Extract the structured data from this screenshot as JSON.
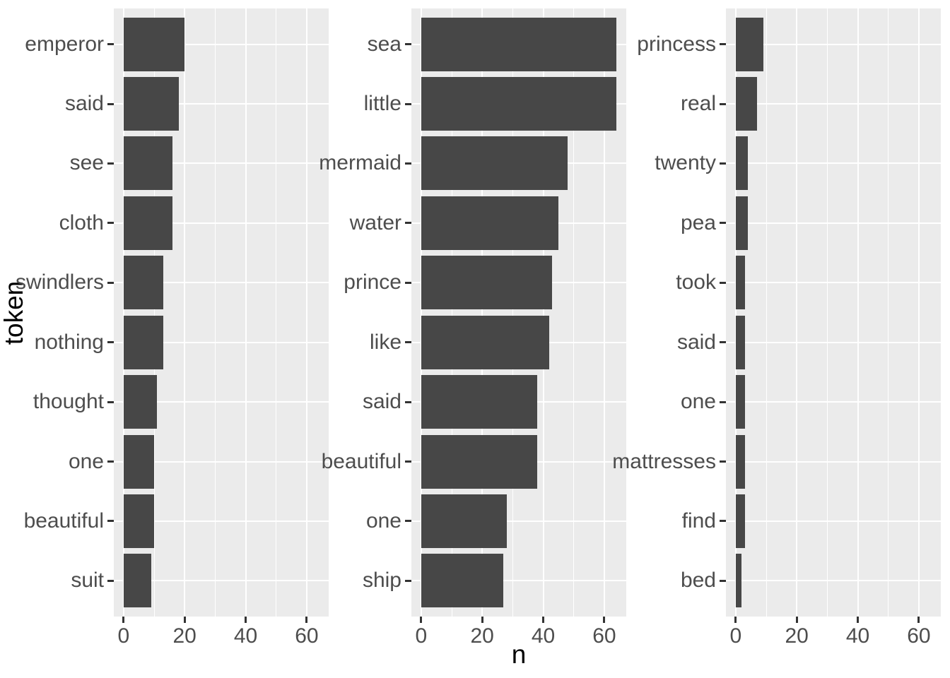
{
  "chart_data": {
    "type": "bar",
    "orientation": "horizontal",
    "xlabel": "n",
    "ylabel": "token",
    "x_major_ticks": [
      0,
      20,
      40,
      60
    ],
    "x_minor_ticks": [
      10,
      30,
      50
    ],
    "xlim": [
      -3.2,
      67.2
    ],
    "grid": "on",
    "legend": "none",
    "facets": [
      {
        "categories": [
          "emperor",
          "said",
          "see",
          "cloth",
          "swindlers",
          "nothing",
          "thought",
          "one",
          "beautiful",
          "suit"
        ],
        "values": [
          20,
          18,
          16,
          16,
          13,
          13,
          11,
          10,
          10,
          9
        ]
      },
      {
        "categories": [
          "sea",
          "little",
          "mermaid",
          "water",
          "prince",
          "like",
          "said",
          "beautiful",
          "one",
          "ship"
        ],
        "values": [
          64,
          64,
          48,
          45,
          43,
          42,
          38,
          38,
          28,
          27
        ]
      },
      {
        "categories": [
          "princess",
          "real",
          "twenty",
          "pea",
          "took",
          "said",
          "one",
          "mattresses",
          "find",
          "bed"
        ],
        "values": [
          9,
          7,
          4,
          4,
          3,
          3,
          3,
          3,
          3,
          2
        ]
      }
    ],
    "colors": {
      "bar_fill": "#474747",
      "panel_background": "#EBEBEB",
      "gridline": "#FFFFFF",
      "tick_text": "#4D4D4D",
      "axis_title_text": "#000000",
      "tick_mark": "#333333",
      "figure_background": "#FFFFFF"
    }
  }
}
